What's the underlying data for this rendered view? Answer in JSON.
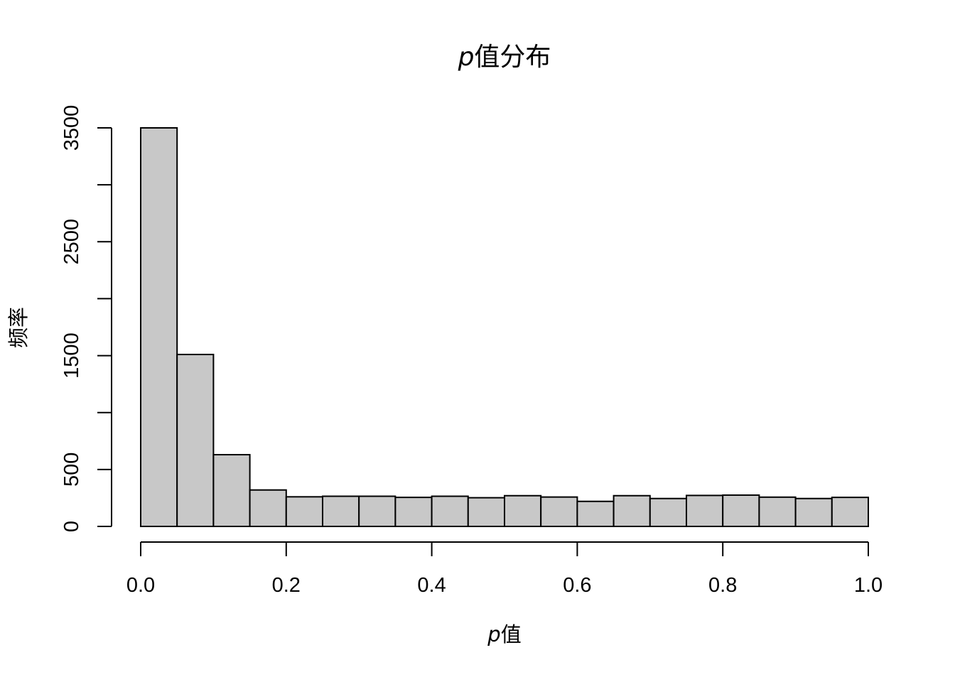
{
  "chart_data": {
    "type": "bar",
    "title_symbol": "p",
    "title_text": "值分布",
    "xlabel_symbol": "p",
    "xlabel_text": "值",
    "ylabel": "频率",
    "bin_edges": [
      0.0,
      0.05,
      0.1,
      0.15,
      0.2,
      0.25,
      0.3,
      0.35,
      0.4,
      0.45,
      0.5,
      0.55,
      0.6,
      0.65,
      0.7,
      0.75,
      0.8,
      0.85,
      0.9,
      0.95,
      1.0
    ],
    "values": [
      3500,
      1510,
      630,
      320,
      260,
      265,
      265,
      255,
      265,
      252,
      270,
      258,
      220,
      270,
      245,
      272,
      275,
      257,
      245,
      255
    ],
    "xlim": [
      0.0,
      1.0
    ],
    "ylim": [
      0,
      3500
    ],
    "x_ticks": [
      "0.0",
      "0.2",
      "0.4",
      "0.6",
      "0.8",
      "1.0"
    ],
    "x_tick_values": [
      0.0,
      0.2,
      0.4,
      0.6,
      0.8,
      1.0
    ],
    "y_ticks_labeled": [
      "0",
      "500",
      "1500",
      "2500",
      "3500"
    ],
    "y_tick_label_values": [
      0,
      500,
      1500,
      2500,
      3500
    ],
    "y_tick_values": [
      0,
      500,
      1000,
      1500,
      2000,
      2500,
      3000,
      3500
    ],
    "grid": false,
    "legend": "none",
    "colors": {
      "bar_fill": "#c8c8c8",
      "bar_stroke": "#000000"
    }
  }
}
